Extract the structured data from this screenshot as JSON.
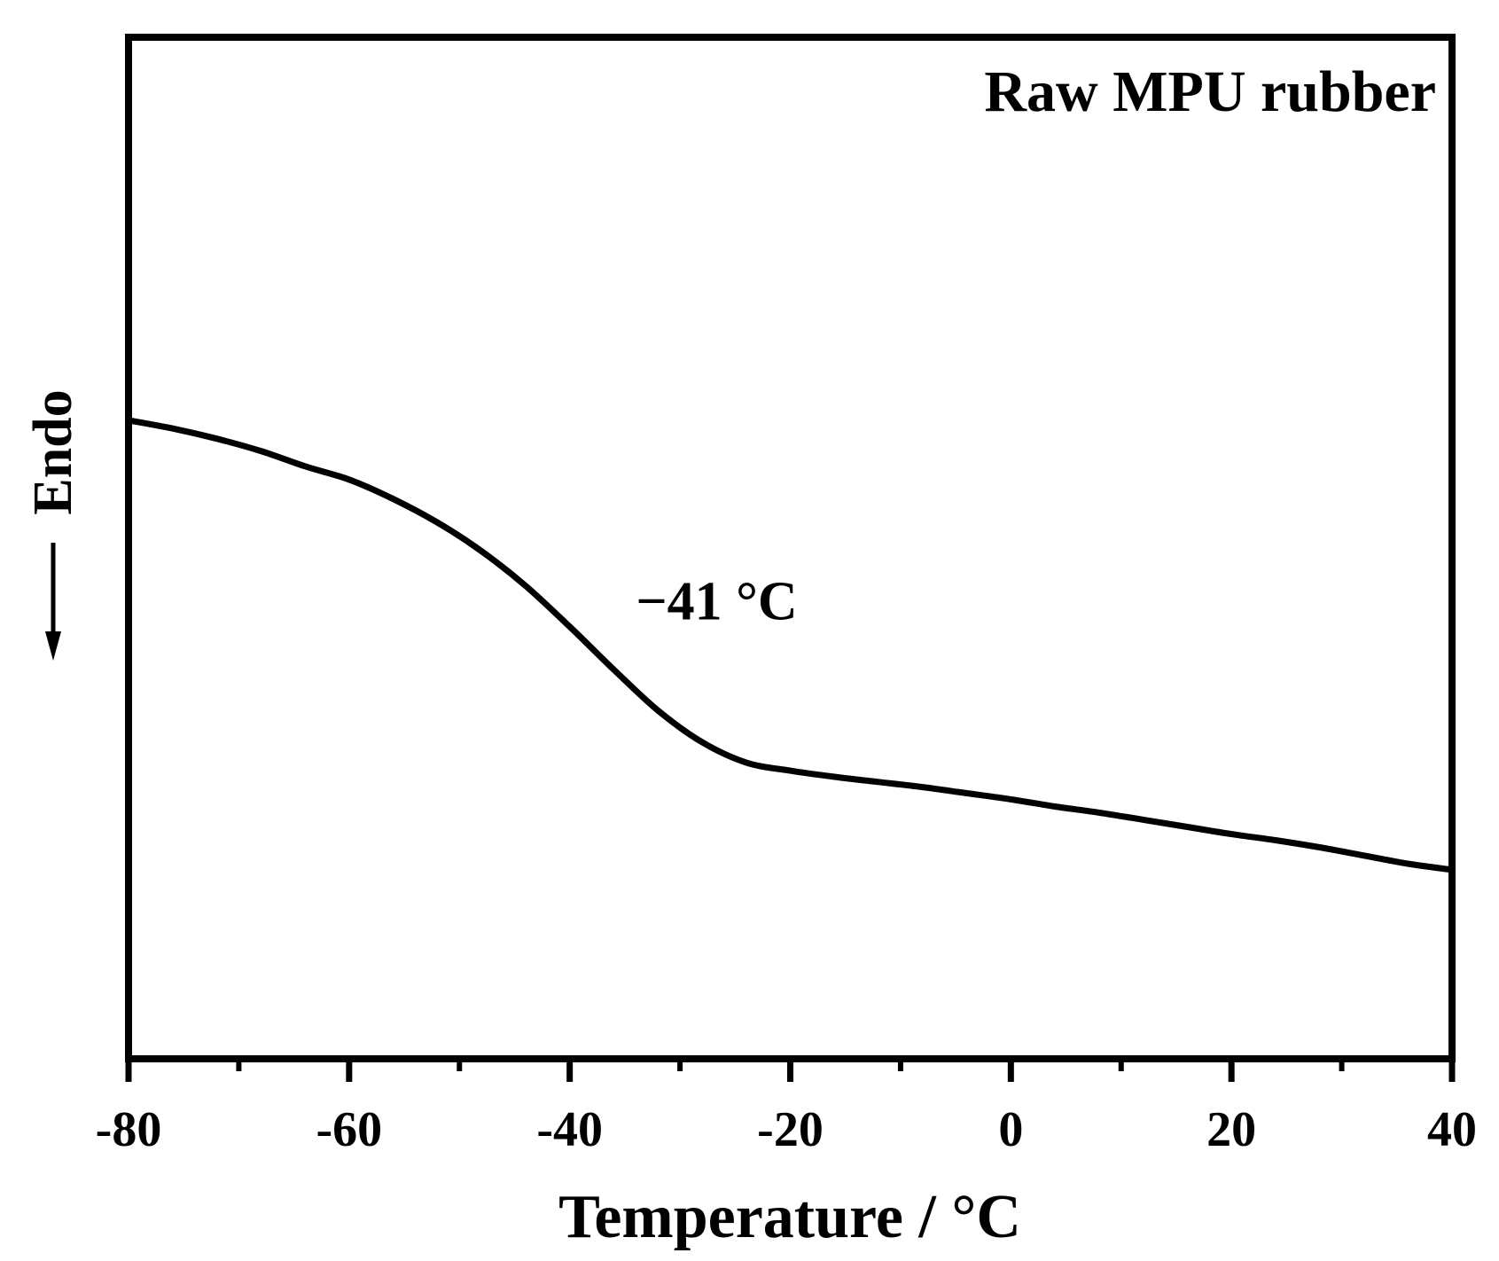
{
  "chart_data": {
    "type": "line",
    "title": "Raw MPU rubber",
    "xlabel": "Temperature / °C",
    "ylabel": "Endo",
    "ylabel_arrow": "down",
    "xlim": [
      -80,
      40
    ],
    "xticks": [
      -80,
      -60,
      -40,
      -20,
      0,
      20,
      40
    ],
    "xtick_labels": [
      "-80",
      "-60",
      "-40",
      "-20",
      "0",
      "20",
      "40"
    ],
    "minor_xticks": [
      -70,
      -50,
      -30,
      -10,
      10,
      30
    ],
    "ylim": [
      0,
      1
    ],
    "y_ticks_shown": false,
    "grid": false,
    "series": [
      {
        "name": "Raw MPU rubber",
        "color": "#000000",
        "x": [
          -80,
          -76,
          -72,
          -68,
          -64,
          -60,
          -56,
          -52,
          -48,
          -44,
          -40,
          -36,
          -32,
          -28,
          -24,
          -20,
          -16,
          -12,
          -8,
          -4,
          0,
          4,
          8,
          12,
          16,
          20,
          24,
          28,
          32,
          36,
          40
        ],
        "y": [
          0.625,
          0.617,
          0.607,
          0.595,
          0.58,
          0.567,
          0.548,
          0.525,
          0.497,
          0.463,
          0.423,
          0.381,
          0.341,
          0.31,
          0.29,
          0.282,
          0.276,
          0.271,
          0.266,
          0.26,
          0.254,
          0.247,
          0.241,
          0.234,
          0.227,
          0.22,
          0.214,
          0.207,
          0.199,
          0.191,
          0.185
        ]
      }
    ],
    "annotations": [
      {
        "text": "−41 °C",
        "x": -34,
        "y": 0.43
      }
    ]
  }
}
